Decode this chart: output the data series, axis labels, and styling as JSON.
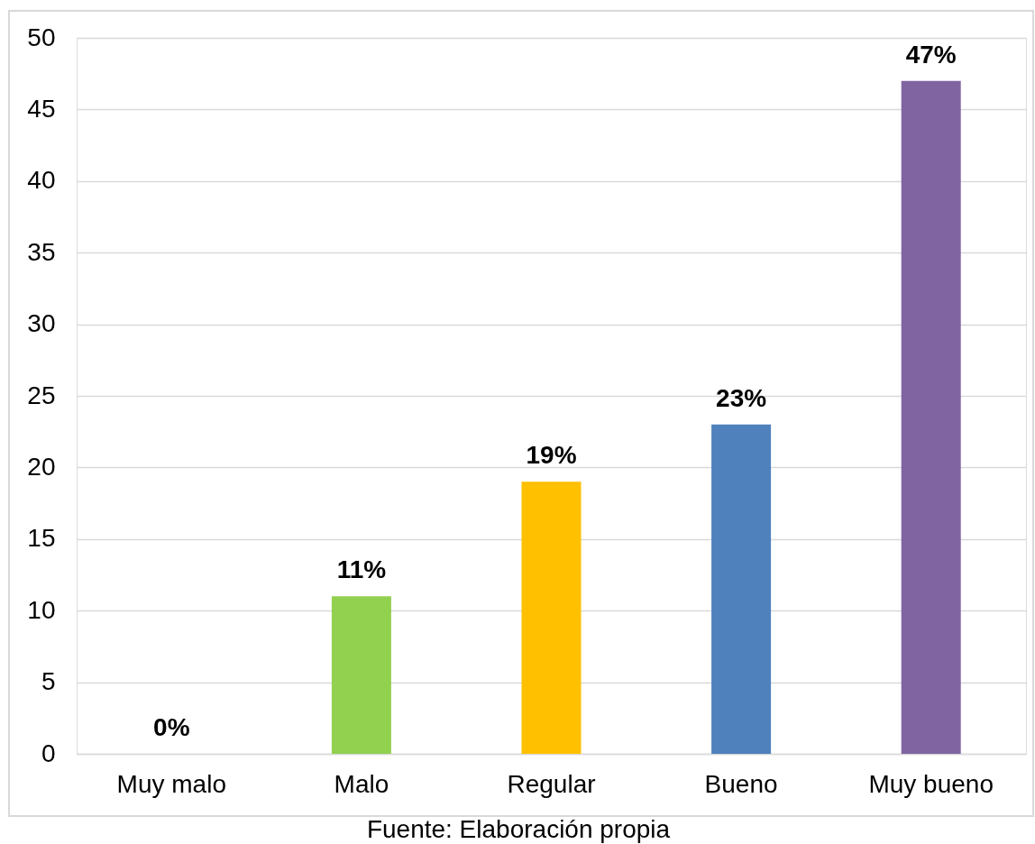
{
  "chart_data": {
    "type": "bar",
    "categories": [
      "Muy malo",
      "Malo",
      "Regular",
      "Bueno",
      "Muy bueno"
    ],
    "values": [
      0,
      11,
      19,
      23,
      47
    ],
    "colors": [
      "#c0504d",
      "#92d050",
      "#ffc000",
      "#4f81bd",
      "#8064a2"
    ],
    "value_labels": [
      "0%",
      "11%",
      "19%",
      "23%",
      "47%"
    ],
    "ylim": [
      0,
      50
    ],
    "yticks": [
      0,
      5,
      10,
      15,
      20,
      25,
      30,
      35,
      40,
      45,
      50
    ],
    "grid": "y",
    "annotations": [
      "Fuente: Elaboración propia"
    ]
  }
}
